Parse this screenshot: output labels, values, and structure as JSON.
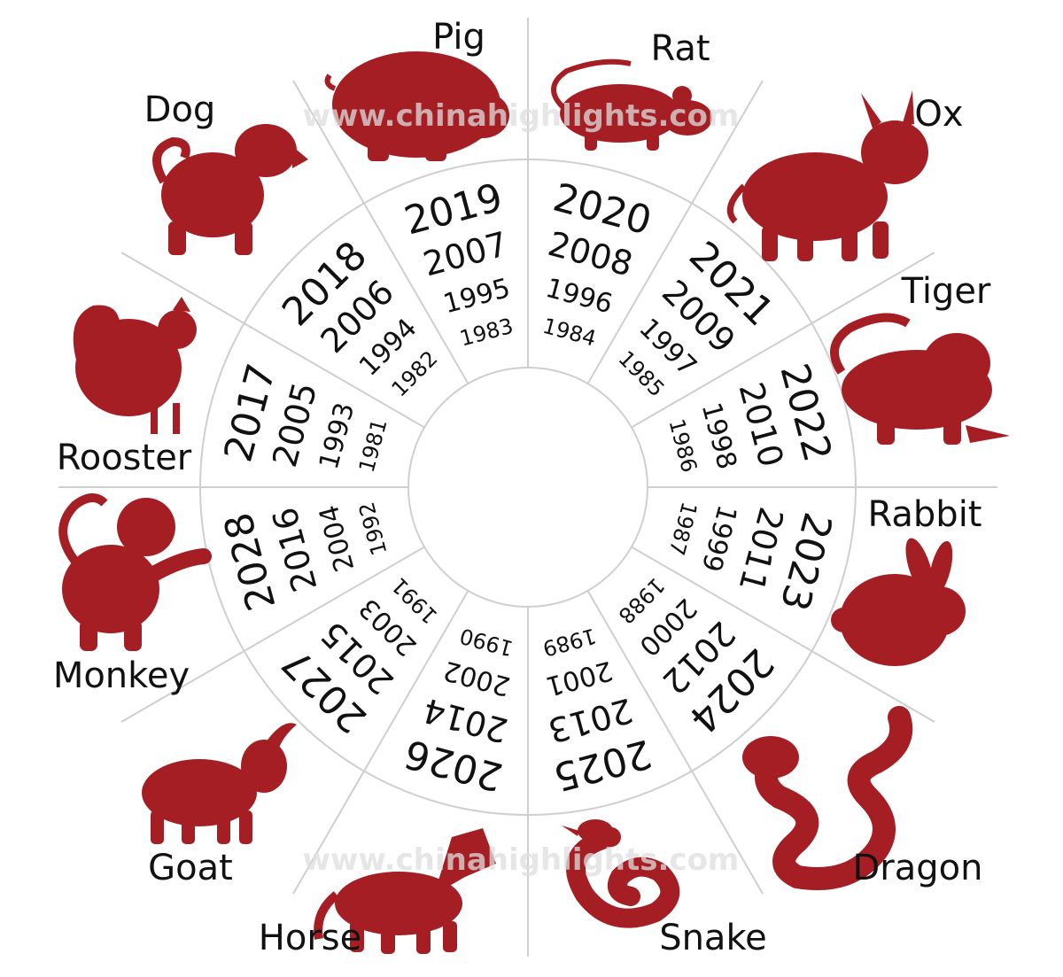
{
  "colors": {
    "silhouette": "#a41e23",
    "lines": "#cfcfcf",
    "text": "#111111",
    "background": "#ffffff"
  },
  "watermark": "www.chinahighlights.com",
  "signs": [
    {
      "id": "rat",
      "name": "Rat",
      "icon": "rat-icon",
      "years": [
        "2020",
        "2008",
        "1996",
        "1984"
      ]
    },
    {
      "id": "ox",
      "name": "Ox",
      "icon": "ox-icon",
      "years": [
        "2021",
        "2009",
        "1997",
        "1985"
      ]
    },
    {
      "id": "tiger",
      "name": "Tiger",
      "icon": "tiger-icon",
      "years": [
        "2022",
        "2010",
        "1998",
        "1986"
      ]
    },
    {
      "id": "rabbit",
      "name": "Rabbit",
      "icon": "rabbit-icon",
      "years": [
        "2023",
        "2011",
        "1999",
        "1987"
      ]
    },
    {
      "id": "dragon",
      "name": "Dragon",
      "icon": "dragon-icon",
      "years": [
        "2024",
        "2012",
        "2000",
        "1988"
      ]
    },
    {
      "id": "snake",
      "name": "Snake",
      "icon": "snake-icon",
      "years": [
        "2025",
        "2013",
        "2001",
        "1989"
      ]
    },
    {
      "id": "horse",
      "name": "Horse",
      "icon": "horse-icon",
      "years": [
        "2026",
        "2014",
        "2002",
        "1990"
      ]
    },
    {
      "id": "goat",
      "name": "Goat",
      "icon": "goat-icon",
      "years": [
        "2027",
        "2015",
        "2003",
        "1991"
      ]
    },
    {
      "id": "monkey",
      "name": "Monkey",
      "icon": "monkey-icon",
      "years": [
        "2028",
        "2016",
        "2004",
        "1992"
      ]
    },
    {
      "id": "rooster",
      "name": "Rooster",
      "icon": "rooster-icon",
      "years": [
        "2017",
        "2005",
        "1993",
        "1981"
      ]
    },
    {
      "id": "dog",
      "name": "Dog",
      "icon": "dog-icon",
      "years": [
        "2018",
        "2006",
        "1994",
        "1982"
      ]
    },
    {
      "id": "pig",
      "name": "Pig",
      "icon": "pig-icon",
      "years": [
        "2019",
        "2007",
        "1995",
        "1983"
      ]
    }
  ]
}
